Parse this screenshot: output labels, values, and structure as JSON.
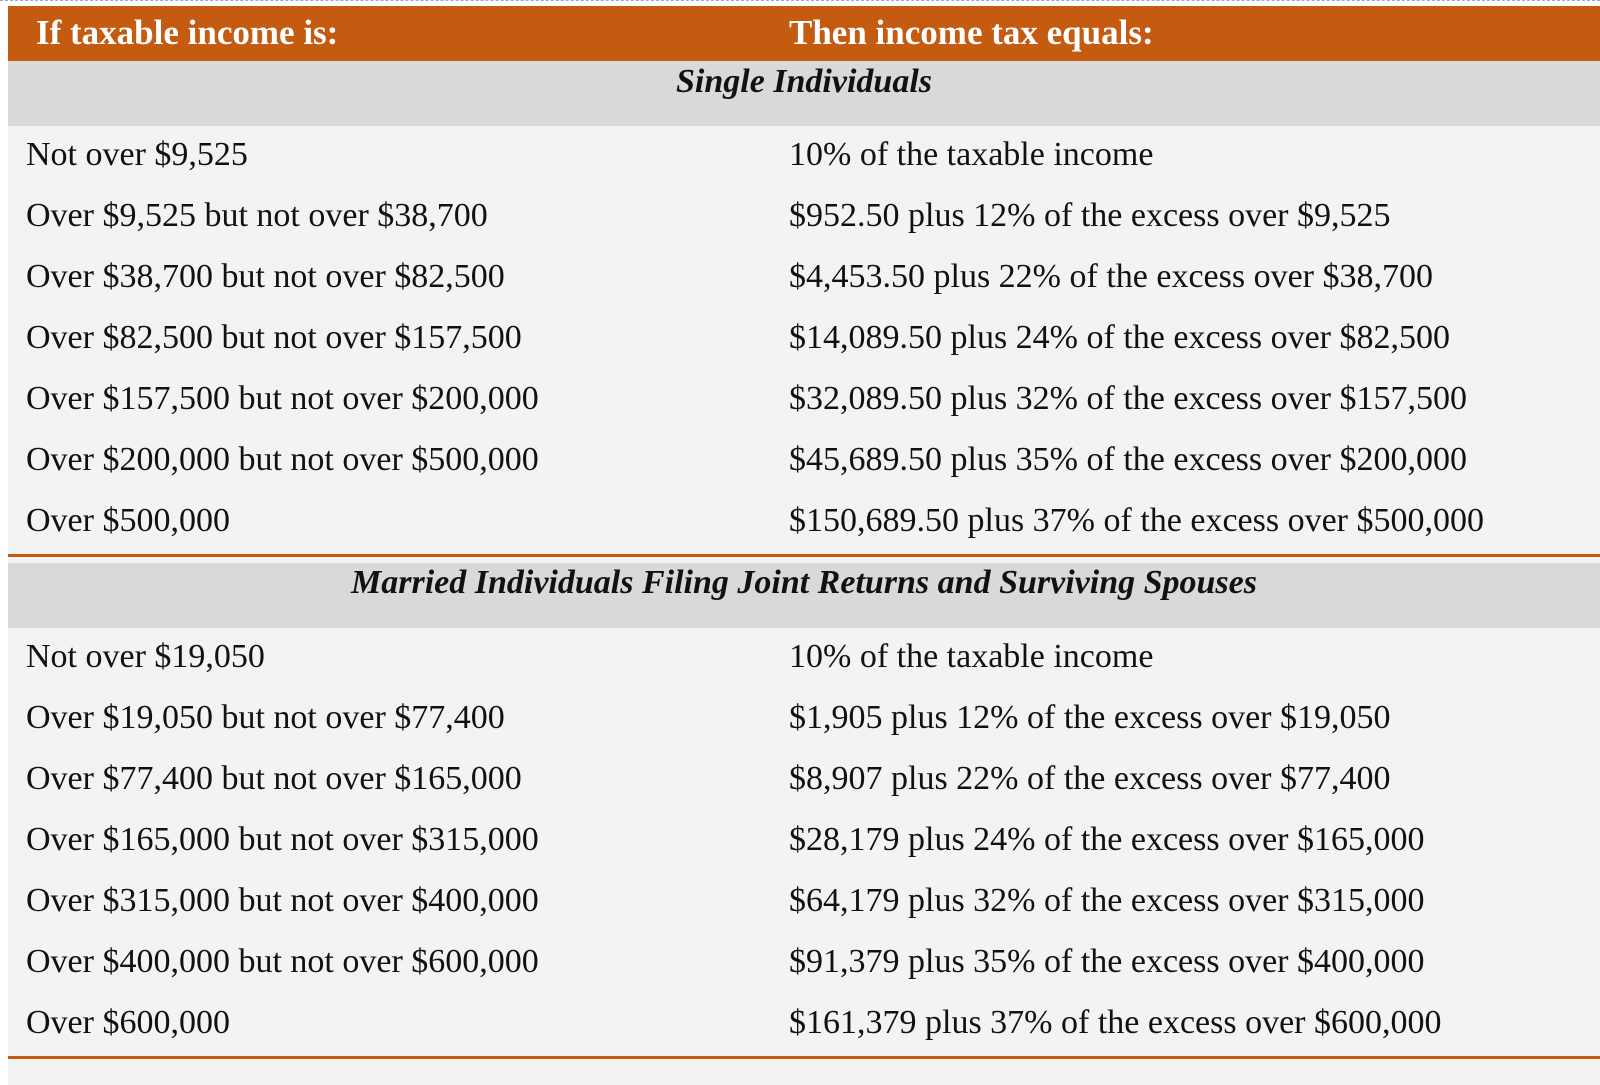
{
  "header": {
    "col1": "If taxable income is:",
    "col2": "Then income tax equals:"
  },
  "sections": [
    {
      "title": "Single Individuals",
      "rows": [
        {
          "income": "Not over $9,525",
          "tax": "10% of the taxable income"
        },
        {
          "income": "Over $9,525 but not over $38,700",
          "tax": "$952.50 plus 12% of the excess over $9,525"
        },
        {
          "income": "Over $38,700 but not over $82,500",
          "tax": "$4,453.50 plus 22% of the excess over $38,700"
        },
        {
          "income": "Over $82,500 but not over $157,500",
          "tax": "$14,089.50 plus 24% of the excess over $82,500"
        },
        {
          "income": "Over $157,500 but not over $200,000",
          "tax": "$32,089.50 plus 32% of the excess over $157,500"
        },
        {
          "income": "Over $200,000 but not over $500,000",
          "tax": "$45,689.50 plus 35% of the excess over $200,000"
        },
        {
          "income": "Over $500,000",
          "tax": "$150,689.50 plus 37% of the excess over $500,000"
        }
      ]
    },
    {
      "title": "Married Individuals Filing Joint Returns and Surviving Spouses",
      "rows": [
        {
          "income": "Not over $19,050",
          "tax": "10% of the taxable income"
        },
        {
          "income": "Over $19,050 but not over $77,400",
          "tax": "$1,905 plus 12% of the excess over $19,050"
        },
        {
          "income": "Over $77,400 but not over $165,000",
          "tax": "$8,907 plus 22% of the excess over $77,400"
        },
        {
          "income": "Over $165,000 but not over $315,000",
          "tax": "$28,179 plus 24% of the excess over $165,000"
        },
        {
          "income": "Over $315,000 but not over $400,000",
          "tax": "$64,179 plus 32% of the excess over $315,000"
        },
        {
          "income": "Over $400,000 but not over $600,000",
          "tax": "$91,379 plus 35% of the excess over $400,000"
        },
        {
          "income": "Over $600,000",
          "tax": "$161,379 plus 37% of the excess over $600,000"
        }
      ]
    }
  ],
  "colors": {
    "header_bg": "#c55a11",
    "section_bg": "#d9d9d9",
    "body_bg": "#f3f3f3"
  }
}
